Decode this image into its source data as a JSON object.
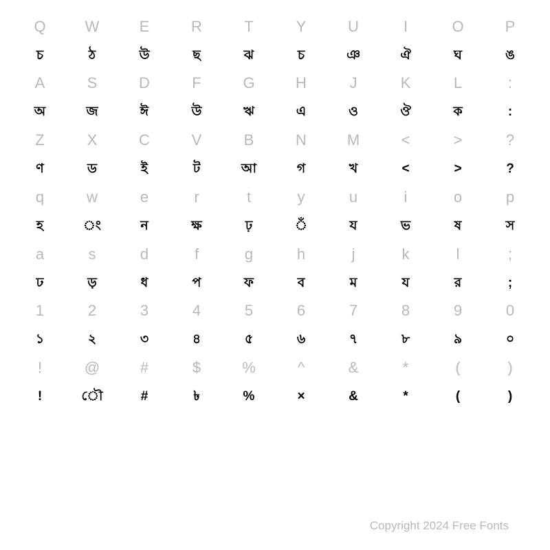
{
  "rows": [
    {
      "type": "label",
      "cells": [
        "Q",
        "W",
        "E",
        "R",
        "T",
        "Y",
        "U",
        "I",
        "O",
        "P"
      ]
    },
    {
      "type": "glyph",
      "cells": [
        "চ",
        "ঠ",
        "উ",
        "ছ",
        "ঝ",
        "চ",
        "ঞ",
        "ঐ",
        "ঘ",
        "ঙ"
      ]
    },
    {
      "type": "label",
      "cells": [
        "A",
        "S",
        "D",
        "F",
        "G",
        "H",
        "J",
        "K",
        "L",
        ":"
      ]
    },
    {
      "type": "glyph",
      "cells": [
        "অ",
        "জ",
        "ঈ",
        "উ",
        "ঋ",
        "এ",
        "ও",
        "ঔ",
        "ক",
        ":"
      ]
    },
    {
      "type": "label",
      "cells": [
        "Z",
        "X",
        "C",
        "V",
        "B",
        "N",
        "M",
        "<",
        ">",
        "?"
      ]
    },
    {
      "type": "glyph",
      "cells": [
        "ণ",
        "ড",
        "ই",
        "ট",
        "আ",
        "গ",
        "খ",
        "<",
        ">",
        "?"
      ]
    },
    {
      "type": "label",
      "cells": [
        "q",
        "w",
        "e",
        "r",
        "t",
        "y",
        "u",
        "i",
        "o",
        "p"
      ]
    },
    {
      "type": "glyph",
      "cells": [
        "হ",
        "ং",
        "ন",
        "ক্ষ",
        "ঢ়",
        "ঁ",
        "য",
        "ভ",
        "ষ",
        "স"
      ]
    },
    {
      "type": "label",
      "cells": [
        "a",
        "s",
        "d",
        "f",
        "g",
        "h",
        "j",
        "k",
        "l",
        ";"
      ]
    },
    {
      "type": "glyph",
      "cells": [
        "ঢ",
        "ড়",
        "ধ",
        "প",
        "ফ",
        "ব",
        "ম",
        "য",
        "র",
        ";"
      ]
    },
    {
      "type": "label",
      "cells": [
        "1",
        "2",
        "3",
        "4",
        "5",
        "6",
        "7",
        "8",
        "9",
        "0"
      ]
    },
    {
      "type": "glyph",
      "cells": [
        "১",
        "২",
        "৩",
        "৪",
        "৫",
        "৬",
        "৭",
        "৮",
        "৯",
        "০"
      ]
    },
    {
      "type": "label",
      "cells": [
        "!",
        "@",
        "#",
        "$",
        "%",
        "^",
        "&",
        "*",
        "(",
        ")"
      ]
    },
    {
      "type": "glyph",
      "cells": [
        "!",
        "ৌ",
        "#",
        "৳",
        "%",
        "×",
        "&",
        "*",
        "(",
        ")"
      ]
    }
  ],
  "footer": "Copyright 2024 Free Fonts",
  "colors": {
    "label": "#b8b8b8",
    "glyph": "#000000",
    "background": "#ffffff"
  },
  "font_sizes": {
    "label": 22,
    "glyph": 19,
    "footer": 17
  }
}
